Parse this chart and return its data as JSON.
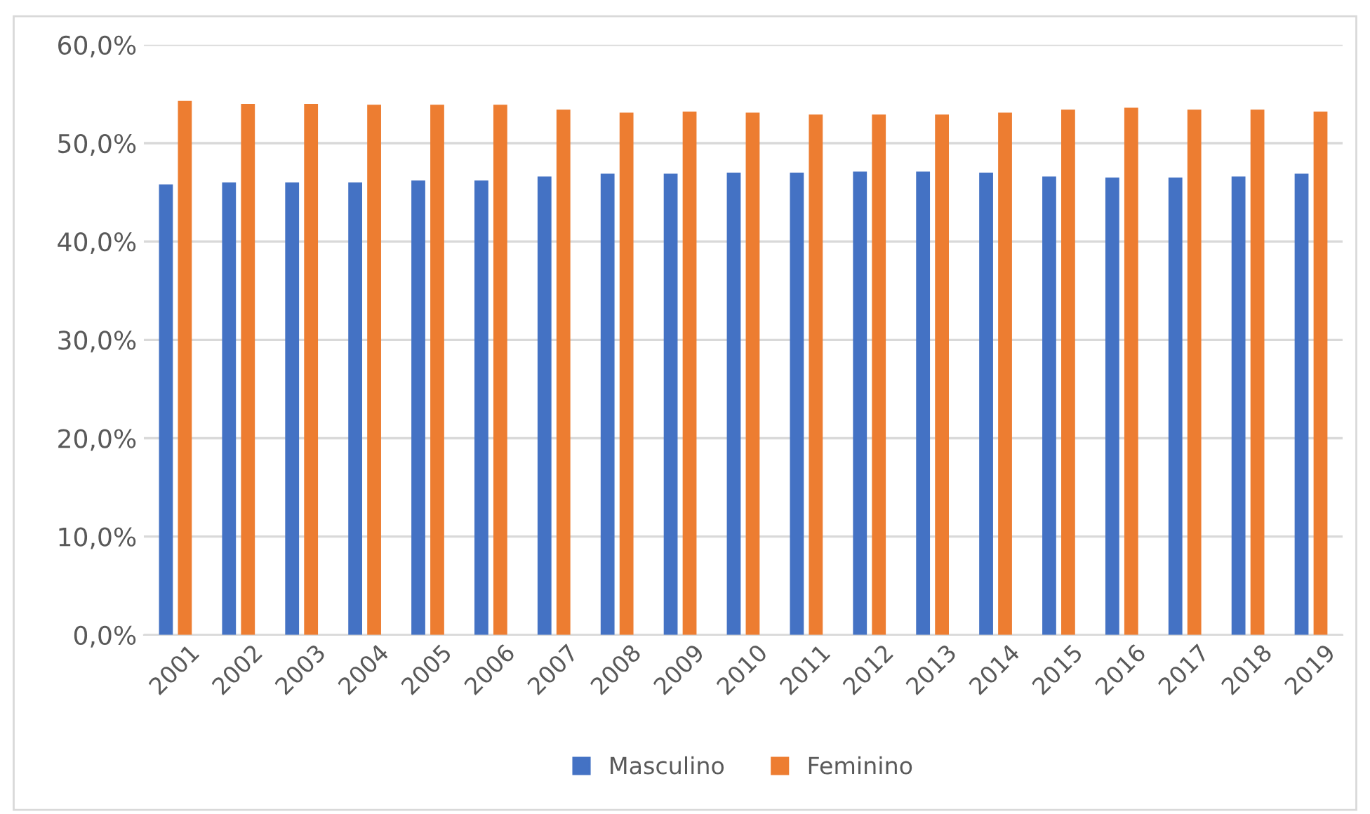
{
  "chart_data": {
    "type": "bar",
    "categories": [
      "2001",
      "2002",
      "2003",
      "2004",
      "2005",
      "2006",
      "2007",
      "2008",
      "2009",
      "2010",
      "2011",
      "2012",
      "2013",
      "2014",
      "2015",
      "2016",
      "2017",
      "2018",
      "2019"
    ],
    "series": [
      {
        "name": "Masculino",
        "color": "#4472c4",
        "values": [
          45.8,
          46.0,
          46.0,
          46.0,
          46.2,
          46.2,
          46.6,
          46.9,
          46.9,
          47.0,
          47.0,
          47.1,
          47.1,
          47.0,
          46.6,
          46.5,
          46.5,
          46.6,
          46.9
        ]
      },
      {
        "name": "Feminino",
        "color": "#ed7d31",
        "values": [
          54.3,
          54.0,
          54.0,
          53.9,
          53.9,
          53.9,
          53.4,
          53.1,
          53.2,
          53.1,
          52.9,
          52.9,
          52.9,
          53.1,
          53.4,
          53.6,
          53.4,
          53.4,
          53.2
        ]
      }
    ],
    "ylim": [
      0,
      60
    ],
    "yticks": [
      {
        "value": 0,
        "label": "0,0%"
      },
      {
        "value": 10,
        "label": "10,0%"
      },
      {
        "value": 20,
        "label": "20,0%"
      },
      {
        "value": 30,
        "label": "30,0%"
      },
      {
        "value": 40,
        "label": "40,0%"
      },
      {
        "value": 50,
        "label": "50,0%"
      },
      {
        "value": 60,
        "label": "60,0%"
      }
    ],
    "grid": "y",
    "legend": "bottom"
  }
}
